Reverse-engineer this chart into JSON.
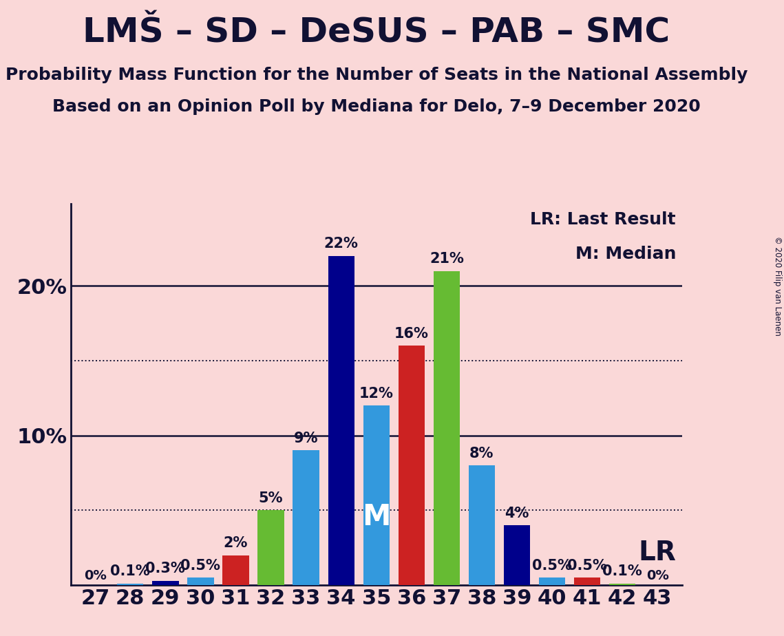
{
  "title": "LMŠ – SD – DeSUS – PAB – SMC",
  "subtitle1": "Probability Mass Function for the Number of Seats in the National Assembly",
  "subtitle2": "Based on an Opinion Poll by Mediana for Delo, 7–9 December 2020",
  "copyright": "© 2020 Filip van Laenen",
  "seats": [
    27,
    28,
    29,
    30,
    31,
    32,
    33,
    34,
    35,
    36,
    37,
    38,
    39,
    40,
    41,
    42,
    43
  ],
  "values": [
    0.0,
    0.1,
    0.3,
    0.5,
    2.0,
    5.0,
    9.0,
    22.0,
    12.0,
    16.0,
    21.0,
    8.0,
    4.0,
    0.5,
    0.5,
    0.1,
    0.0
  ],
  "labels": [
    "0%",
    "0.1%",
    "0.3%",
    "0.5%",
    "2%",
    "5%",
    "9%",
    "22%",
    "12%",
    "16%",
    "21%",
    "8%",
    "4%",
    "0.5%",
    "0.5%",
    "0.1%",
    "0%"
  ],
  "bar_colors": [
    "#3399dd",
    "#3399dd",
    "#00008b",
    "#3399dd",
    "#cc2222",
    "#66bb33",
    "#3399dd",
    "#00008b",
    "#3399dd",
    "#cc2222",
    "#66bb33",
    "#3399dd",
    "#00008b",
    "#3399dd",
    "#cc2222",
    "#66bb33",
    "#3399dd"
  ],
  "median_seat": 35,
  "lr_seat": 41,
  "background_color": "#fad8d8",
  "legend_lr": "LR: Last Result",
  "legend_m": "M: Median",
  "lr_label": "LR",
  "m_label": "M",
  "ylim": [
    0,
    25.5
  ],
  "dotted_ylines": [
    5,
    15
  ],
  "solid_ylines": [
    10,
    20
  ],
  "ytick_values": [
    10,
    20
  ],
  "ytick_labels": [
    "10%",
    "20%"
  ],
  "title_fontsize": 36,
  "subtitle_fontsize": 18,
  "bar_label_fontsize": 15,
  "tick_fontsize": 22,
  "legend_fontsize": 18,
  "m_label_fontsize": 30,
  "lr_label_fontsize": 28,
  "annot_color": "#111133"
}
